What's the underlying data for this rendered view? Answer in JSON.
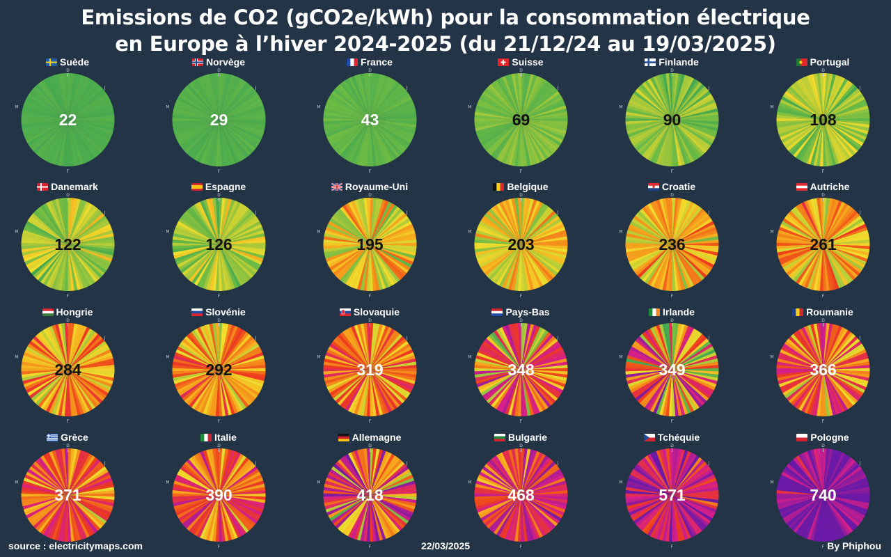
{
  "title": {
    "line1": "Emissions de CO2 (gCO2e/kWh) pour la consommation électrique",
    "line2": "en Europe à l’hiver 2024-2025 (du 21/12/24 au 19/03/2025)"
  },
  "month_markers": {
    "top": "D",
    "right": "J",
    "bottom": "F",
    "left": "M"
  },
  "colors": {
    "background": "#243447",
    "scale": [
      "#3fa652",
      "#6cbb45",
      "#a6c93a",
      "#f2dc2c",
      "#f7b21f",
      "#f5861a",
      "#ee3b1c",
      "#d71f8a",
      "#6a1aa6"
    ]
  },
  "chart_data": {
    "type": "pie",
    "title": "Emissions de CO2 (gCO2e/kWh) pour la consommation électrique en Europe à l’hiver 2024-2025 (du 21/12/24 au 19/03/2025)",
    "unit": "gCO2e/kWh",
    "series": [
      {
        "name": "Suède",
        "value": 22,
        "flag": "se"
      },
      {
        "name": "Norvège",
        "value": 29,
        "flag": "no"
      },
      {
        "name": "France",
        "value": 43,
        "flag": "fr"
      },
      {
        "name": "Suisse",
        "value": 69,
        "flag": "ch"
      },
      {
        "name": "Finlande",
        "value": 90,
        "flag": "fi"
      },
      {
        "name": "Portugal",
        "value": 108,
        "flag": "pt"
      },
      {
        "name": "Danemark",
        "value": 122,
        "flag": "dk"
      },
      {
        "name": "Espagne",
        "value": 126,
        "flag": "es"
      },
      {
        "name": "Royaume-Uni",
        "value": 195,
        "flag": "gb"
      },
      {
        "name": "Belgique",
        "value": 203,
        "flag": "be"
      },
      {
        "name": "Croatie",
        "value": 236,
        "flag": "hr"
      },
      {
        "name": "Autriche",
        "value": 261,
        "flag": "at"
      },
      {
        "name": "Hongrie",
        "value": 284,
        "flag": "hu"
      },
      {
        "name": "Slovénie",
        "value": 292,
        "flag": "si"
      },
      {
        "name": "Slovaquie",
        "value": 319,
        "flag": "sk"
      },
      {
        "name": "Pays-Bas",
        "value": 348,
        "flag": "nl"
      },
      {
        "name": "Irlande",
        "value": 349,
        "flag": "ie"
      },
      {
        "name": "Roumanie",
        "value": 366,
        "flag": "ro"
      },
      {
        "name": "Grèce",
        "value": 371,
        "flag": "gr"
      },
      {
        "name": "Italie",
        "value": 390,
        "flag": "it"
      },
      {
        "name": "Allemagne",
        "value": 418,
        "flag": "de"
      },
      {
        "name": "Bulgarie",
        "value": 468,
        "flag": "bg"
      },
      {
        "name": "Tchéquie",
        "value": 571,
        "flag": "cz"
      },
      {
        "name": "Pologne",
        "value": 740,
        "flag": "pl"
      }
    ]
  },
  "footer": {
    "source": "source : electricitymaps.com",
    "date": "22/03/2025",
    "author": "By Phiphou"
  }
}
